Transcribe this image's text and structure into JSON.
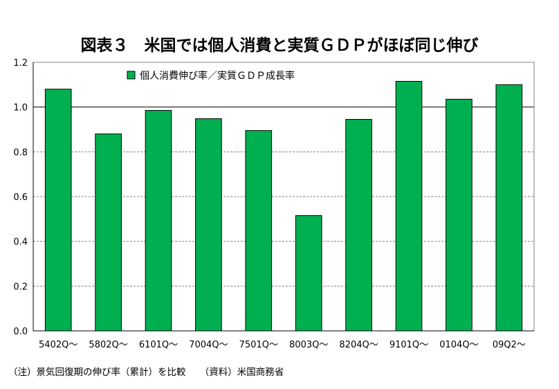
{
  "chart_data": {
    "type": "bar",
    "title": "図表３　米国では個人消費と実質ＧＤＰがほぼ同じ伸び",
    "series": [
      {
        "name": "個人消費伸び率／実質ＧＤＰ成長率",
        "values": [
          1.08,
          0.88,
          0.985,
          0.948,
          0.895,
          0.515,
          0.945,
          1.115,
          1.035,
          1.1
        ]
      }
    ],
    "categories": [
      "5402Q～",
      "5802Q～",
      "6101Q～",
      "7004Q～",
      "7501Q～",
      "8003Q～",
      "8204Q～",
      "9101Q～",
      "0104Q～",
      "09Q2～"
    ],
    "ylim": [
      0,
      1.2
    ],
    "yticks": [
      "0.0",
      "0.2",
      "0.4",
      "0.6",
      "0.8",
      "1.0",
      "1.2"
    ],
    "reference_line": 1.0,
    "grid": "dashed horizontal",
    "legend_position": "top-left",
    "colors": {
      "bar": "#00B050",
      "bar_stroke": "#000000",
      "grid": "#808080",
      "axis": "#000000"
    }
  },
  "footnote": "（注）景気回復期の伸び率（累計）を比較　　（資料）米国商務省"
}
